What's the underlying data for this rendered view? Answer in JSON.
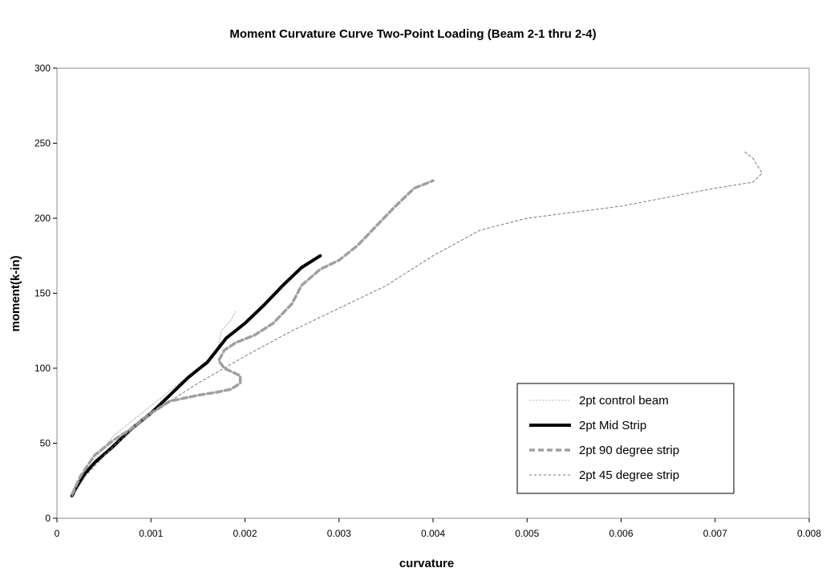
{
  "chart_data": {
    "type": "line",
    "title": "Moment Curvature Curve Two-Point Loading (Beam 2-1 thru 2-4)",
    "xlabel": "curvature",
    "ylabel": "moment(k-in)",
    "xlim": [
      0,
      0.008
    ],
    "ylim": [
      0,
      300
    ],
    "x_ticks": [
      "0",
      "0.001",
      "0.002",
      "0.003",
      "0.004",
      "0.005",
      "0.006",
      "0.007",
      "0.008"
    ],
    "y_ticks": [
      "0",
      "50",
      "100",
      "150",
      "200",
      "250",
      "300"
    ],
    "grid": false,
    "legend_position": "bottom-right",
    "series": [
      {
        "name": "2pt control beam",
        "color": "#b8b8b8",
        "style": "dotted-thin",
        "points": [
          [
            0.00018,
            15
          ],
          [
            0.0003,
            30
          ],
          [
            0.0006,
            55
          ],
          [
            0.001,
            75
          ],
          [
            0.0014,
            95
          ],
          [
            0.0017,
            110
          ],
          [
            0.00175,
            125
          ],
          [
            0.00185,
            132
          ],
          [
            0.0019,
            138
          ]
        ]
      },
      {
        "name": "2pt Mid Strip",
        "color": "#000000",
        "style": "solid-thick",
        "points": [
          [
            0.00016,
            15
          ],
          [
            0.0002,
            20
          ],
          [
            0.00025,
            25
          ],
          [
            0.0003,
            30
          ],
          [
            0.0004,
            37
          ],
          [
            0.0006,
            48
          ],
          [
            0.0008,
            60
          ],
          [
            0.001,
            70
          ],
          [
            0.0012,
            82
          ],
          [
            0.0014,
            94
          ],
          [
            0.0016,
            104
          ],
          [
            0.0017,
            112
          ],
          [
            0.0018,
            120
          ],
          [
            0.002,
            130
          ],
          [
            0.0022,
            142
          ],
          [
            0.0024,
            155
          ],
          [
            0.0026,
            167
          ],
          [
            0.0028,
            175
          ]
        ]
      },
      {
        "name": "2pt 90 degree strip",
        "color": "#a0a0a0",
        "style": "dashed-thick",
        "points": [
          [
            0.00016,
            16
          ],
          [
            0.00025,
            28
          ],
          [
            0.0004,
            42
          ],
          [
            0.0006,
            52
          ],
          [
            0.0008,
            60
          ],
          [
            0.001,
            70
          ],
          [
            0.0012,
            78
          ],
          [
            0.0015,
            82
          ],
          [
            0.0017,
            84
          ],
          [
            0.00185,
            86
          ],
          [
            0.00195,
            90
          ],
          [
            0.00195,
            95
          ],
          [
            0.00178,
            100
          ],
          [
            0.00172,
            105
          ],
          [
            0.00178,
            112
          ],
          [
            0.0019,
            117
          ],
          [
            0.0021,
            122
          ],
          [
            0.0023,
            130
          ],
          [
            0.0025,
            143
          ],
          [
            0.0026,
            155
          ],
          [
            0.0028,
            166
          ],
          [
            0.003,
            172
          ],
          [
            0.0032,
            182
          ],
          [
            0.0034,
            195
          ],
          [
            0.0036,
            208
          ],
          [
            0.0038,
            220
          ],
          [
            0.004,
            225
          ]
        ]
      },
      {
        "name": "2pt 45 degree strip",
        "color": "#7a7a7a",
        "style": "dashed-thin",
        "points": [
          [
            0.00016,
            14
          ],
          [
            0.0003,
            28
          ],
          [
            0.0006,
            48
          ],
          [
            0.001,
            70
          ],
          [
            0.0015,
            90
          ],
          [
            0.002,
            108
          ],
          [
            0.0025,
            125
          ],
          [
            0.003,
            140
          ],
          [
            0.0035,
            155
          ],
          [
            0.004,
            175
          ],
          [
            0.0045,
            192
          ],
          [
            0.005,
            200
          ],
          [
            0.006,
            208
          ],
          [
            0.007,
            220
          ],
          [
            0.0074,
            224
          ],
          [
            0.0075,
            230
          ],
          [
            0.0074,
            240
          ],
          [
            0.0073,
            245
          ]
        ]
      }
    ]
  }
}
